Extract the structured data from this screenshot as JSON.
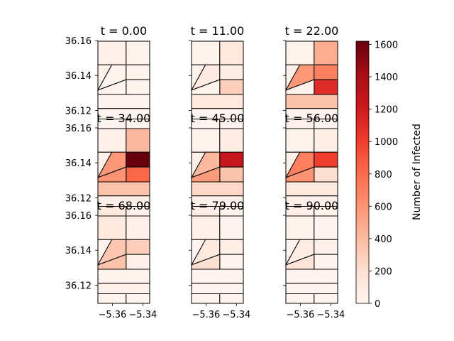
{
  "chart_data": {
    "type": "heatmap",
    "colormap": "Reds",
    "colorbar": {
      "label": "Number of Infected",
      "vmin": 0,
      "vmax": 1620,
      "ticks": [
        "0",
        "200",
        "400",
        "600",
        "800",
        "1000",
        "1200",
        "1400",
        "1600"
      ]
    },
    "xlim": [
      -5.3695,
      -5.3355
    ],
    "ylim": [
      36.1096,
      36.1596
    ],
    "x_ticks": [
      "−5.36",
      "−5.34"
    ],
    "x_tick_values": [
      -5.36,
      -5.34
    ],
    "y_ticks": [
      "36.16",
      "36.14",
      "36.12"
    ],
    "y_tick_values": [
      36.16,
      36.14,
      36.12
    ],
    "panels": [
      {
        "title": "t = 0.00",
        "values": [
          40,
          20,
          40,
          15,
          20,
          15,
          10,
          10,
          10,
          10,
          10
        ]
      },
      {
        "title": "t = 11.00",
        "values": [
          20,
          120,
          20,
          100,
          80,
          300,
          20,
          120,
          10,
          20,
          10
        ]
      },
      {
        "title": "t = 22.00",
        "values": [
          20,
          480,
          40,
          580,
          700,
          1100,
          30,
          360,
          20,
          40,
          10
        ]
      },
      {
        "title": "t = 34.00",
        "values": [
          40,
          420,
          40,
          580,
          1620,
          820,
          600,
          360,
          60,
          120,
          40
        ]
      },
      {
        "title": "t = 45.00",
        "values": [
          20,
          80,
          40,
          420,
          1250,
          360,
          560,
          240,
          40,
          60,
          20
        ]
      },
      {
        "title": "t = 56.00",
        "values": [
          20,
          60,
          40,
          700,
          1000,
          200,
          600,
          120,
          40,
          40,
          20
        ]
      },
      {
        "title": "t = 68.00",
        "values": [
          120,
          40,
          20,
          340,
          300,
          40,
          360,
          20,
          30,
          20,
          10
        ]
      },
      {
        "title": "t = 79.00",
        "values": [
          40,
          10,
          10,
          120,
          60,
          10,
          200,
          10,
          10,
          10,
          10
        ]
      },
      {
        "title": "t = 90.00",
        "values": [
          20,
          10,
          10,
          80,
          40,
          10,
          160,
          10,
          10,
          10,
          10
        ]
      }
    ]
  }
}
